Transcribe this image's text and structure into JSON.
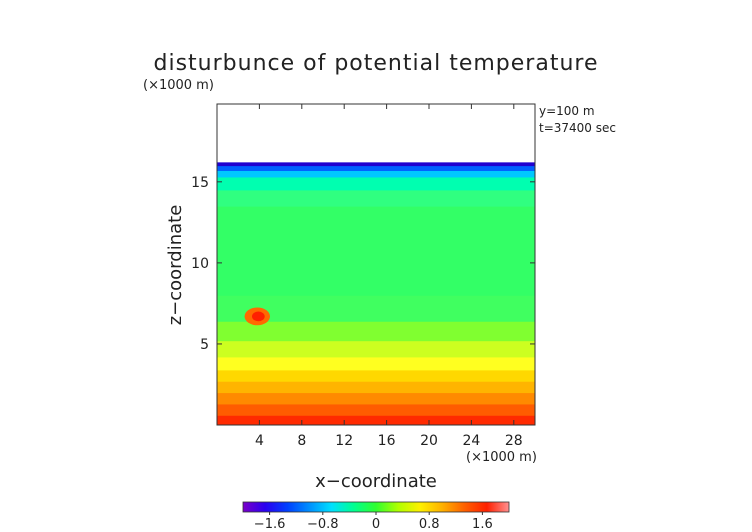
{
  "chart_data": {
    "type": "heatmap",
    "title": "disturbunce of potential temperature",
    "scale_label": "(×1000 m)",
    "xlabel": "x−coordinate",
    "ylabel": "z−coordinate",
    "x_unit_label": "(×1000 m)",
    "info_lines": [
      "y=100 m",
      "t=37400 sec"
    ],
    "xlim": [
      0,
      30
    ],
    "ylim": [
      0,
      19.8
    ],
    "x_ticks": [
      4,
      8,
      12,
      16,
      20,
      24,
      28
    ],
    "y_ticks": [
      5,
      10,
      15
    ],
    "model_top": 16.2,
    "colorbar": {
      "range": [
        -2,
        2
      ],
      "tick_values": [
        -1.6,
        -0.8,
        0,
        0.8,
        1.6
      ],
      "tick_labels": [
        "−1.6",
        "−0.8",
        "0",
        "0.8",
        "1.6"
      ],
      "colors": [
        "#7a00c8",
        "#2a00f0",
        "#0040ff",
        "#0090ff",
        "#00e0ff",
        "#00ff90",
        "#30ff30",
        "#b0ff00",
        "#fff000",
        "#ffb000",
        "#ff6000",
        "#ff2000",
        "#ff9090"
      ]
    },
    "field_bands": [
      {
        "z0": 0.0,
        "z1": 0.6,
        "color": "#ff2a00"
      },
      {
        "z0": 0.6,
        "z1": 1.3,
        "color": "#ff5c00"
      },
      {
        "z0": 1.3,
        "z1": 2.0,
        "color": "#ff8a00"
      },
      {
        "z0": 2.0,
        "z1": 2.7,
        "color": "#ffb400"
      },
      {
        "z0": 2.7,
        "z1": 3.4,
        "color": "#ffd800"
      },
      {
        "z0": 3.4,
        "z1": 4.2,
        "color": "#ffff20"
      },
      {
        "z0": 4.2,
        "z1": 5.2,
        "color": "#ccff20"
      },
      {
        "z0": 5.2,
        "z1": 6.4,
        "color": "#80ff30"
      },
      {
        "z0": 6.4,
        "z1": 8.0,
        "color": "#40ff60"
      },
      {
        "z0": 8.0,
        "z1": 13.5,
        "color": "#33ff66"
      },
      {
        "z0": 13.5,
        "z1": 14.5,
        "color": "#30ff80"
      },
      {
        "z0": 14.5,
        "z1": 15.3,
        "color": "#00ffb0"
      },
      {
        "z0": 15.3,
        "z1": 15.7,
        "color": "#00c8ff"
      },
      {
        "z0": 15.7,
        "z1": 16.0,
        "color": "#0060ff"
      },
      {
        "z0": 16.0,
        "z1": 16.2,
        "color": "#2000d0"
      }
    ],
    "features": [
      {
        "label": "warm anomaly",
        "x": 3.8,
        "z": 6.7,
        "rx": 1.2,
        "rz": 0.55,
        "color": "#ff6a00"
      },
      {
        "label": "warm core",
        "x": 3.9,
        "z": 6.7,
        "rx": 0.6,
        "rz": 0.3,
        "color": "#ff2000"
      }
    ]
  }
}
